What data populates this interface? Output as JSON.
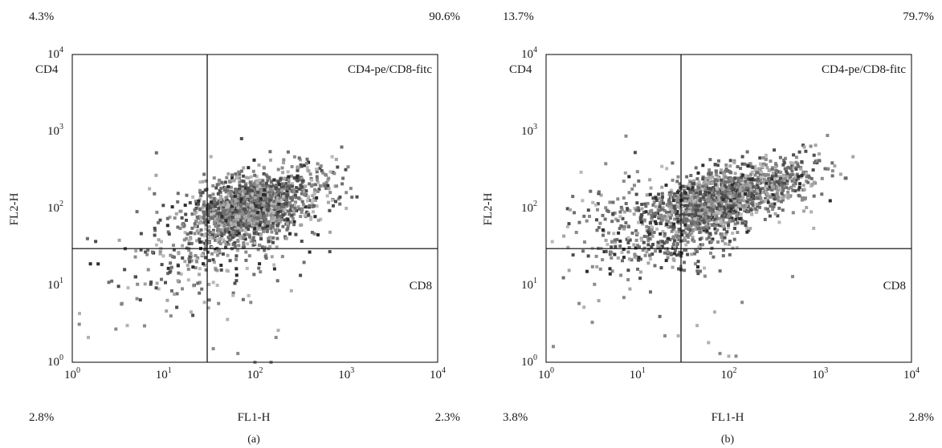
{
  "chart_data": [
    {
      "type": "scatter",
      "panel_label": "(a)",
      "xlabel": "FL1-H",
      "ylabel": "FL2-H",
      "xscale": "log",
      "yscale": "log",
      "xlim": [
        1,
        10000
      ],
      "ylim": [
        1,
        10000
      ],
      "x_ticks": [
        "10^0",
        "10^1",
        "10^2",
        "10^3",
        "10^4"
      ],
      "y_ticks": [
        "10^0",
        "10^1",
        "10^2",
        "10^3",
        "10^4"
      ],
      "gate": {
        "x": 30,
        "y": 30
      },
      "quadrant_labels": {
        "upper_left": "CD4",
        "upper_right": "CD4-pe/CD8-fitc",
        "lower_right": "CD8"
      },
      "quadrant_percentages": {
        "upper_left": "4.3%",
        "upper_right": "90.6%",
        "lower_left": "2.8%",
        "lower_right": "2.3%"
      },
      "clusters": [
        {
          "cx": 80,
          "cy": 100,
          "sx": 0.26,
          "sy": 0.2,
          "n": 1100
        },
        {
          "cx": 170,
          "cy": 130,
          "sx": 0.36,
          "sy": 0.22,
          "n": 450
        },
        {
          "cx": 40,
          "cy": 40,
          "sx": 0.45,
          "sy": 0.38,
          "n": 260
        },
        {
          "cx": 12,
          "cy": 22,
          "sx": 0.45,
          "sy": 0.35,
          "n": 70
        }
      ],
      "outliers": [
        [
          1.2,
          4.3
        ],
        [
          1.5,
          2.1
        ],
        [
          3,
          2.7
        ],
        [
          4,
          3
        ],
        [
          3.5,
          5.8
        ],
        [
          12,
          4
        ],
        [
          16,
          9
        ],
        [
          28,
          6
        ],
        [
          40,
          5.8
        ],
        [
          50,
          3.6
        ],
        [
          65,
          1.3
        ],
        [
          100,
          1.0
        ],
        [
          150,
          1.0
        ],
        [
          170,
          2.1
        ],
        [
          180,
          2.6
        ],
        [
          35,
          1.5
        ],
        [
          250,
          8.5
        ],
        [
          1000,
          100
        ],
        [
          7,
          180
        ],
        [
          33,
          470
        ],
        [
          20,
          4.5
        ],
        [
          90,
          6
        ]
      ]
    },
    {
      "type": "scatter",
      "panel_label": "(b)",
      "xlabel": "FL1-H",
      "ylabel": "FL2-H",
      "xscale": "log",
      "yscale": "log",
      "xlim": [
        1,
        10000
      ],
      "ylim": [
        1,
        10000
      ],
      "x_ticks": [
        "10^0",
        "10^1",
        "10^2",
        "10^3",
        "10^4"
      ],
      "y_ticks": [
        "10^0",
        "10^1",
        "10^2",
        "10^3",
        "10^4"
      ],
      "gate": {
        "x": 30,
        "y": 30
      },
      "quadrant_labels": {
        "upper_left": "CD4",
        "upper_right": "CD4-pe/CD8-fitc",
        "lower_right": "CD8"
      },
      "quadrant_percentages": {
        "upper_left": "13.7%",
        "upper_right": "79.7%",
        "lower_left": "3.8%",
        "lower_right": "2.8%"
      },
      "clusters": [
        {
          "cx": 60,
          "cy": 115,
          "sx": 0.26,
          "sy": 0.2,
          "n": 820
        },
        {
          "cx": 250,
          "cy": 190,
          "sx": 0.32,
          "sy": 0.18,
          "n": 520
        },
        {
          "cx": 25,
          "cy": 55,
          "sx": 0.45,
          "sy": 0.33,
          "n": 420
        },
        {
          "cx": 8,
          "cy": 70,
          "sx": 0.45,
          "sy": 0.3,
          "n": 110
        }
      ],
      "outliers": [
        [
          1.2,
          1.6
        ],
        [
          2.3,
          5.8
        ],
        [
          2.6,
          5.2
        ],
        [
          3.2,
          3.3
        ],
        [
          7.5,
          870
        ],
        [
          4.5,
          380
        ],
        [
          20,
          2.2
        ],
        [
          28,
          2.2
        ],
        [
          60,
          1.8
        ],
        [
          80,
          1.3
        ],
        [
          100,
          1.2
        ],
        [
          120,
          1.2
        ],
        [
          70,
          4.5
        ],
        [
          500,
          13
        ],
        [
          800,
          90
        ],
        [
          850,
          55
        ],
        [
          10,
          300
        ],
        [
          5,
          120
        ],
        [
          45,
          3
        ],
        [
          140,
          6
        ]
      ]
    }
  ]
}
